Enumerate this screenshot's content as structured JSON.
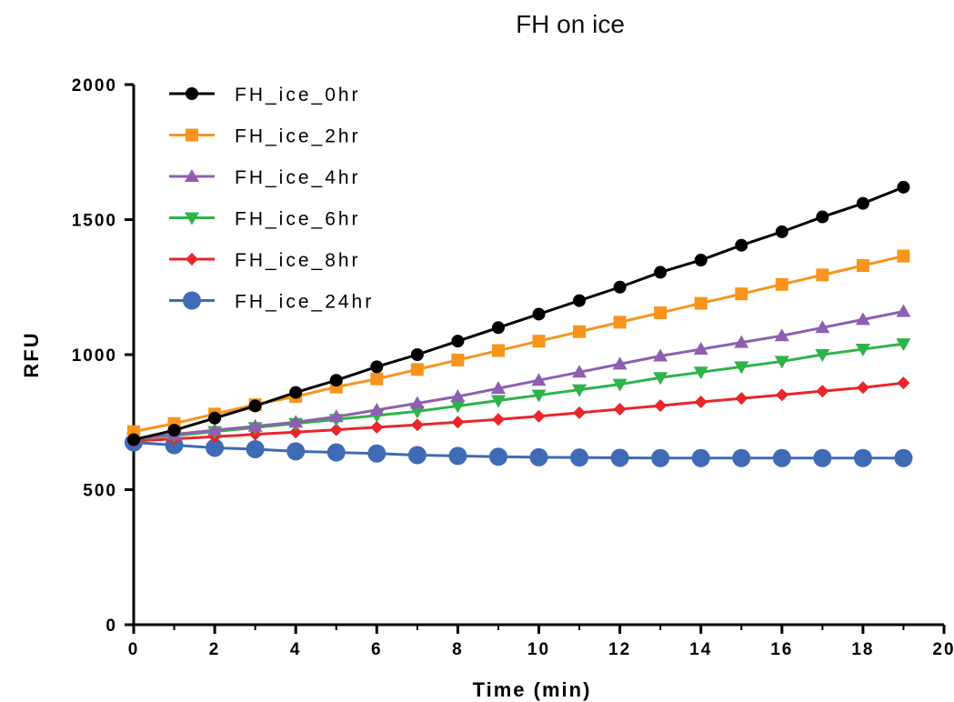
{
  "chart_data": {
    "type": "line",
    "title": "FH on ice",
    "xlabel": "Time (min)",
    "ylabel": "RFU",
    "xlim": [
      0,
      20
    ],
    "ylim": [
      0,
      2000
    ],
    "xticks": [
      0,
      2,
      4,
      6,
      8,
      10,
      12,
      14,
      16,
      18,
      20
    ],
    "yticks": [
      0,
      500,
      1000,
      1500,
      2000
    ],
    "grid": false,
    "legend_position": "top-left",
    "x": [
      0,
      1,
      2,
      3,
      4,
      5,
      6,
      7,
      8,
      9,
      10,
      11,
      12,
      13,
      14,
      15,
      16,
      17,
      18,
      19
    ],
    "series": [
      {
        "name": "FH_ice_0hr",
        "color": "#000000",
        "marker": "circle",
        "values": [
          685,
          720,
          765,
          810,
          860,
          905,
          955,
          1000,
          1050,
          1100,
          1150,
          1200,
          1250,
          1305,
          1350,
          1405,
          1455,
          1510,
          1560,
          1620
        ]
      },
      {
        "name": "FH_ice_2hr",
        "color": "#f7941d",
        "marker": "square",
        "values": [
          715,
          745,
          780,
          815,
          845,
          880,
          910,
          945,
          980,
          1015,
          1050,
          1085,
          1120,
          1155,
          1190,
          1225,
          1260,
          1295,
          1330,
          1365
        ]
      },
      {
        "name": "FH_ice_4hr",
        "color": "#8e5fb0",
        "marker": "triangle-up",
        "values": [
          690,
          705,
          720,
          735,
          750,
          770,
          795,
          820,
          845,
          875,
          905,
          935,
          965,
          995,
          1020,
          1045,
          1070,
          1100,
          1130,
          1160
        ]
      },
      {
        "name": "FH_ice_6hr",
        "color": "#2db34a",
        "marker": "triangle-down",
        "values": [
          690,
          700,
          715,
          730,
          745,
          760,
          775,
          790,
          810,
          830,
          850,
          870,
          890,
          915,
          935,
          955,
          975,
          1000,
          1020,
          1040
        ]
      },
      {
        "name": "FH_ice_8hr",
        "color": "#e8262b",
        "marker": "diamond",
        "values": [
          680,
          688,
          696,
          705,
          713,
          722,
          731,
          740,
          750,
          760,
          772,
          785,
          798,
          811,
          825,
          838,
          851,
          865,
          878,
          895
        ]
      },
      {
        "name": "FH_ice_24hr",
        "color": "#3f6ab5",
        "marker": "big-circle",
        "values": [
          675,
          665,
          655,
          650,
          642,
          638,
          634,
          628,
          625,
          622,
          620,
          619,
          618,
          617,
          617,
          617,
          617,
          617,
          617,
          617
        ]
      }
    ]
  }
}
